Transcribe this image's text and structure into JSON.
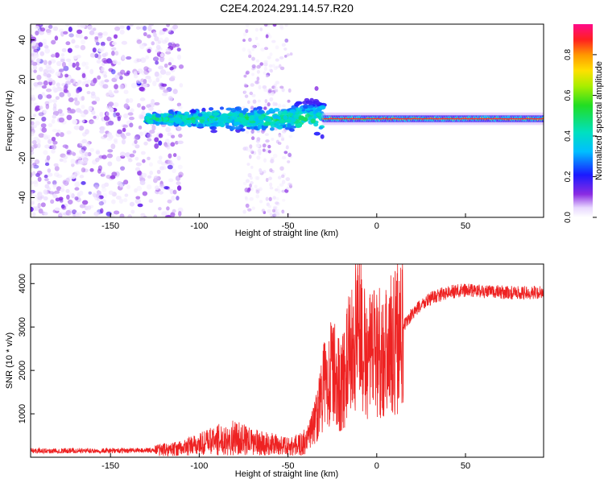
{
  "title": "C2E4.2024.291.14.57.R20",
  "chart_data": [
    {
      "type": "heatmap",
      "xlabel": "Height of straight line (km)",
      "ylabel": "Frequency (Hz)",
      "xlim": [
        -195,
        94
      ],
      "ylim": [
        -50,
        48
      ],
      "xticks": [
        -150,
        -100,
        -50,
        0,
        50
      ],
      "yticks": [
        -40,
        -20,
        0,
        20,
        40
      ],
      "colorbar": {
        "label": "Normalized spectral amplitude",
        "range": [
          0,
          0.95
        ],
        "ticks": [
          0.0,
          0.2,
          0.4,
          0.6,
          0.8
        ],
        "tick_labels": [
          "0.0",
          "0.2",
          "0.4",
          "0.6",
          "0.8"
        ]
      },
      "regions": [
        {
          "name": "scattered noise",
          "x": [
            -195,
            -120
          ],
          "freq": [
            -50,
            48
          ],
          "amplitude": [
            0.02,
            0.2
          ]
        },
        {
          "name": "noise band",
          "x": [
            -75,
            -48
          ],
          "freq": [
            -50,
            48
          ],
          "amplitude": [
            0.02,
            0.15
          ]
        },
        {
          "name": "broadening trace",
          "x": [
            -130,
            -30
          ],
          "freq_center": 0,
          "freq_spread": [
            4,
            14
          ],
          "amplitude": [
            0.2,
            0.45
          ]
        },
        {
          "name": "steady carrier",
          "x": [
            -30,
            94
          ],
          "freq_center": 0,
          "freq_spread": [
            1,
            3
          ],
          "amplitude": [
            0.45,
            0.9
          ]
        }
      ]
    },
    {
      "type": "line",
      "xlabel": "Height of straight line (km)",
      "ylabel": "SNR (10 * v/v)",
      "xlim": [
        -195,
        94
      ],
      "ylim": [
        0,
        4450
      ],
      "xticks": [
        -150,
        -100,
        -50,
        0,
        50
      ],
      "yticks": [
        1000,
        2000,
        3000,
        4000
      ],
      "color": "#ee2222",
      "series": [
        {
          "name": "SNR",
          "x": [
            -195,
            -150,
            -125,
            -110,
            -100,
            -90,
            -80,
            -70,
            -60,
            -50,
            -45,
            -40,
            -35,
            -30,
            -25,
            -20,
            -15,
            -10,
            -5,
            0,
            5,
            10,
            15,
            20,
            25,
            30,
            40,
            50,
            60,
            70,
            80,
            94
          ],
          "y": [
            150,
            150,
            160,
            200,
            300,
            400,
            450,
            350,
            300,
            250,
            280,
            350,
            800,
            1600,
            2000,
            1600,
            2400,
            2700,
            2200,
            2500,
            2400,
            2700,
            3000,
            3300,
            3500,
            3650,
            3800,
            3850,
            3820,
            3800,
            3780,
            3800
          ]
        }
      ]
    }
  ]
}
